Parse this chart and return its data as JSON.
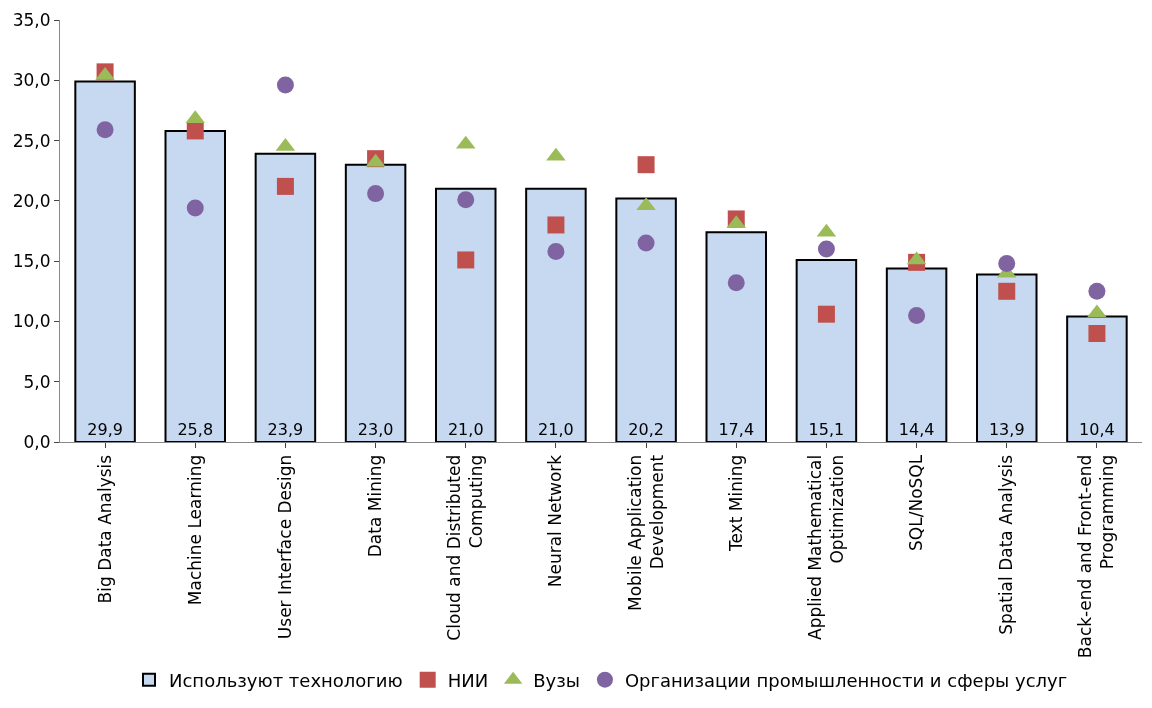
{
  "chart_data": {
    "type": "bar",
    "categories": [
      "Big Data Analysis",
      "Machine Learning",
      "User Interface Design",
      "Data Mining",
      "Cloud and Distributed\nComputing",
      "Neural Network",
      "Mobile Application\nDevelopment",
      "Text Mining",
      "Applied Mathematical\nOptimization",
      "SQL/NoSQL",
      "Spatial Data Analysis",
      "Back-end and Front-end\nProgramming"
    ],
    "series": [
      {
        "name": "Используют технологию",
        "color": "#c6d9f1",
        "values": [
          29.9,
          25.8,
          23.9,
          23.0,
          21.0,
          21.0,
          20.2,
          17.4,
          15.1,
          14.4,
          13.9,
          10.4
        ],
        "value_labels": [
          "29,9",
          "25,8",
          "23,9",
          "23,0",
          "21,0",
          "21,0",
          "20,2",
          "17,4",
          "15,1",
          "14,4",
          "13,9",
          "10,4"
        ]
      },
      {
        "name": "НИИ",
        "type": "scatter",
        "marker": "square",
        "color": "#c0504d",
        "values": [
          30.7,
          25.8,
          21.2,
          23.5,
          15.1,
          18.0,
          23.0,
          18.5,
          10.6,
          14.9,
          12.5,
          9.0
        ]
      },
      {
        "name": "Вузы",
        "type": "scatter",
        "marker": "triangle",
        "color": "#9bbb59",
        "values": [
          30.4,
          26.8,
          24.5,
          23.2,
          24.7,
          23.7,
          19.6,
          18.1,
          17.4,
          15.1,
          14.0,
          10.7
        ]
      },
      {
        "name": "Организации промышленности и сферы услуг",
        "type": "scatter",
        "marker": "circle",
        "color": "#8064a2",
        "values": [
          25.9,
          19.4,
          29.6,
          20.6,
          20.1,
          15.8,
          16.5,
          13.2,
          16.0,
          10.5,
          14.8,
          12.5
        ]
      }
    ],
    "ylim": [
      0,
      35
    ],
    "yticks": [
      {
        "value": 0,
        "label": "0,0"
      },
      {
        "value": 5,
        "label": "5,0"
      },
      {
        "value": 10,
        "label": "10,0"
      },
      {
        "value": 15,
        "label": "15,0"
      },
      {
        "value": 20,
        "label": "20,0"
      },
      {
        "value": 25,
        "label": "25,0"
      },
      {
        "value": 30,
        "label": "30,0"
      },
      {
        "value": 35,
        "label": "35,0"
      }
    ],
    "legend": "bottom"
  }
}
